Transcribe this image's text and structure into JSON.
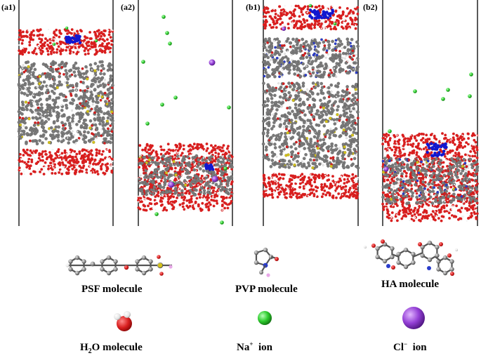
{
  "panels": [
    {
      "id": "a1",
      "label": "(a1)"
    },
    {
      "id": "a2",
      "label": "(a2)"
    },
    {
      "id": "b1",
      "label": "(b1)"
    },
    {
      "id": "b2",
      "label": "(b2)"
    }
  ],
  "legend": {
    "psf": {
      "text": "PSF  molecule"
    },
    "pvp": {
      "text": "PVP  molecule"
    },
    "ha": {
      "text": "HA  molecule"
    },
    "water": {
      "formula_pre": "H",
      "formula_sub": "2",
      "formula_post": "O  molecule"
    },
    "sodium": {
      "symbol": "Na",
      "charge": "+",
      "word": "ion"
    },
    "chloride": {
      "symbol": "Cl",
      "charge": "−",
      "word": "ion"
    }
  },
  "colors": {
    "oxygen": "#d81e1e",
    "hydrogen": "#f2f2f2",
    "carbon": "#7a7a7a",
    "sulfur": "#d4c21a",
    "nitrogen": "#2a3ccc",
    "ha_cluster": "#1018d0",
    "sodium": "#2ecc2e",
    "chloride": "#9440d6",
    "fluorine": "#e8a8e8"
  }
}
